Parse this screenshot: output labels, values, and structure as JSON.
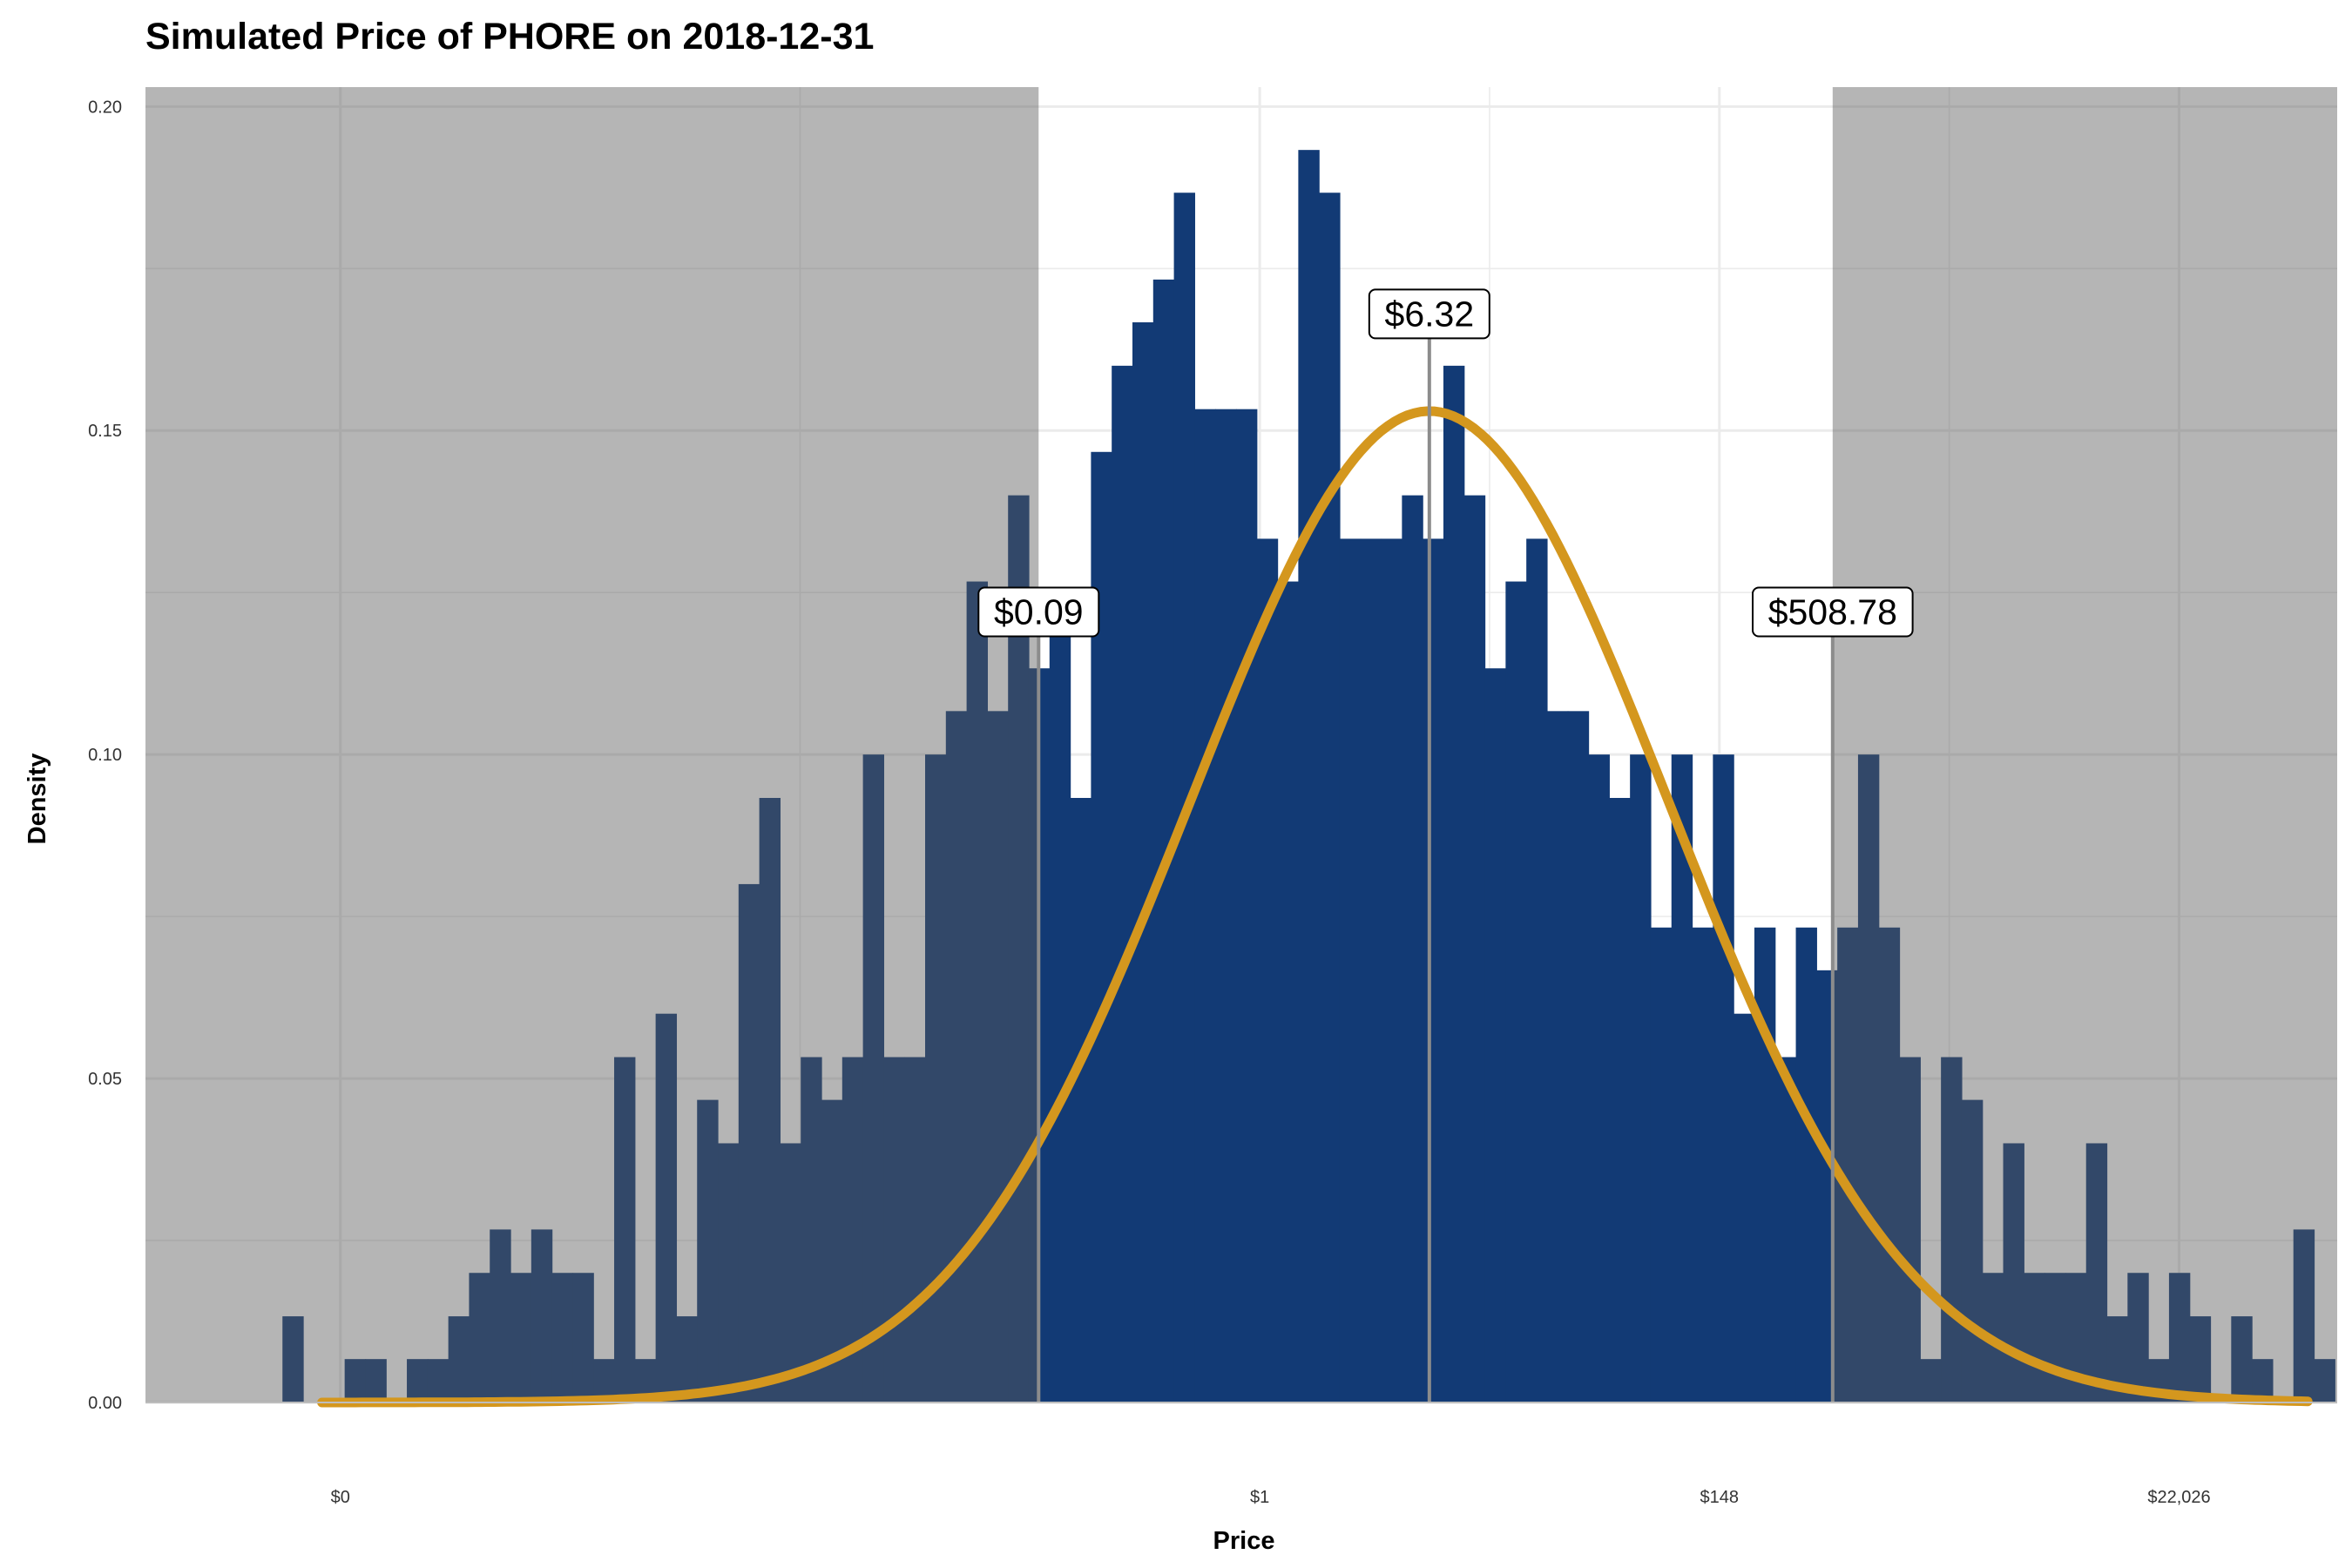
{
  "chart_data": {
    "type": "bar",
    "title": "Simulated Price of PHORE on 2018-12-31",
    "xlabel": "Price",
    "ylabel": "Density",
    "x_scale": "log",
    "x_ticks": [
      {
        "log_value": -10,
        "label": "$0"
      },
      {
        "log_value": 0,
        "label": "$1"
      },
      {
        "log_value": 5,
        "label": "$148"
      },
      {
        "log_value": 10,
        "label": "$22,026"
      }
    ],
    "y_ticks": [
      {
        "value": 0.0,
        "label": "0.00"
      },
      {
        "value": 0.05,
        "label": "0.05"
      },
      {
        "value": 0.1,
        "label": "0.10"
      },
      {
        "value": 0.15,
        "label": "0.15"
      },
      {
        "value": 0.2,
        "label": "0.20"
      }
    ],
    "ylim": [
      0,
      0.203
    ],
    "xlim_log": [
      -12.12,
      11.72
    ],
    "grid": true,
    "histogram": {
      "log_x_start": -10.63,
      "bin_width_log": 0.2255,
      "densities": [
        0.0133,
        0,
        0,
        0.0067,
        0.0067,
        0,
        0.0067,
        0.0067,
        0.0133,
        0.02,
        0.0267,
        0.02,
        0.0267,
        0.02,
        0.02,
        0.0067,
        0.0533,
        0.0067,
        0.06,
        0.0133,
        0.0467,
        0.04,
        0.08,
        0.0933,
        0.04,
        0.0533,
        0.0467,
        0.0533,
        0.1,
        0.0533,
        0.0533,
        0.1,
        0.1067,
        0.1267,
        0.1067,
        0.14,
        0.1133,
        0.12,
        0.0933,
        0.1467,
        0.16,
        0.1667,
        0.1733,
        0.1867,
        0.1533,
        0.1533,
        0.1533,
        0.1333,
        0.1267,
        0.1933,
        0.1867,
        0.1333,
        0.1333,
        0.1333,
        0.14,
        0.1333,
        0.16,
        0.14,
        0.1133,
        0.1267,
        0.1333,
        0.1067,
        0.1067,
        0.1,
        0.0933,
        0.1,
        0.0733,
        0.1,
        0.0733,
        0.1,
        0.06,
        0.0733,
        0.0533,
        0.0733,
        0.0667,
        0.0733,
        0.1,
        0.0733,
        0.0533,
        0.0067,
        0.0533,
        0.0467,
        0.02,
        0.04,
        0.02,
        0.02,
        0.02,
        0.04,
        0.0133,
        0.02,
        0.0067,
        0.02,
        0.0133,
        0,
        0.0133,
        0.0067,
        0,
        0.0267,
        0.0067,
        0,
        0,
        0,
        0,
        0,
        0,
        0,
        0,
        0,
        0,
        0,
        0,
        0,
        0,
        0,
        0,
        0,
        0,
        0,
        0.0067
      ]
    },
    "normal_curve": {
      "mean_log": 1.845,
      "sd_log": 2.6,
      "peak_density": 0.153,
      "log_x_range": [
        -10.2,
        11.4
      ]
    },
    "shaded_regions_log": [
      [
        -12.12,
        -2.405
      ],
      [
        6.232,
        11.72
      ]
    ],
    "annotations": [
      {
        "log_x": -2.405,
        "label": "$0.09",
        "y": 0.122
      },
      {
        "log_x": 1.845,
        "label": "$6.32",
        "y": 0.168
      },
      {
        "log_x": 6.232,
        "label": "$508.78",
        "y": 0.122
      }
    ],
    "colors": {
      "bars": "#123a75",
      "curve": "#d4971e",
      "shade": "#5a5a5a",
      "grid": "#ebebeb",
      "annotation_line": "#8c8c8c"
    }
  }
}
